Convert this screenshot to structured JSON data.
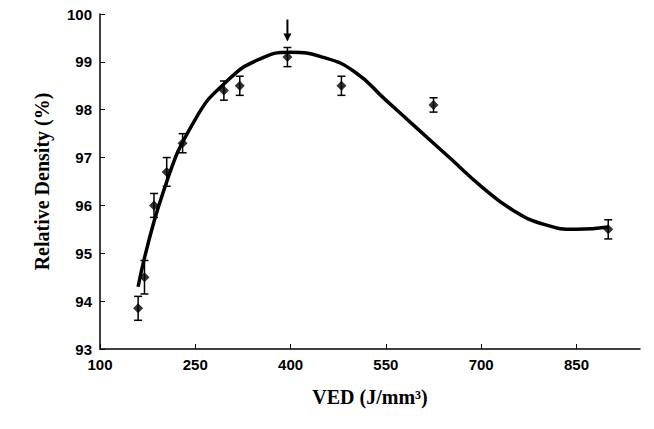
{
  "chart_data": {
    "type": "scatter",
    "x_label": "VED (J/mm³)",
    "y_label": "Relative Density (%)",
    "xlim": [
      100,
      950
    ],
    "xticks": [
      100,
      250,
      400,
      550,
      700,
      850
    ],
    "ylim": [
      93,
      100
    ],
    "yticks": [
      93,
      94,
      95,
      96,
      97,
      98,
      99,
      100
    ],
    "grid": false,
    "series": [
      {
        "type": "scatter",
        "marker": "diamond",
        "color": "#000000",
        "x": [
          160,
          170,
          185,
          205,
          230,
          295,
          320,
          395,
          480,
          625,
          900
        ],
        "values": [
          93.85,
          94.5,
          96.0,
          96.7,
          97.3,
          98.4,
          98.5,
          99.1,
          98.5,
          98.1,
          95.5
        ],
        "errors": [
          0.25,
          0.35,
          0.25,
          0.3,
          0.2,
          0.2,
          0.2,
          0.2,
          0.2,
          0.15,
          0.2
        ]
      },
      {
        "type": "line",
        "line_style": "solid",
        "color": "#000000",
        "x": [
          160,
          200,
          250,
          300,
          350,
          400,
          450,
          500,
          550,
          600,
          650,
          700,
          750,
          800,
          850,
          900
        ],
        "values": [
          94.3,
          96.3,
          97.8,
          98.6,
          99.05,
          99.2,
          99.1,
          98.8,
          98.2,
          97.6,
          97.0,
          96.4,
          95.9,
          95.6,
          95.5,
          95.55
        ]
      }
    ]
  }
}
